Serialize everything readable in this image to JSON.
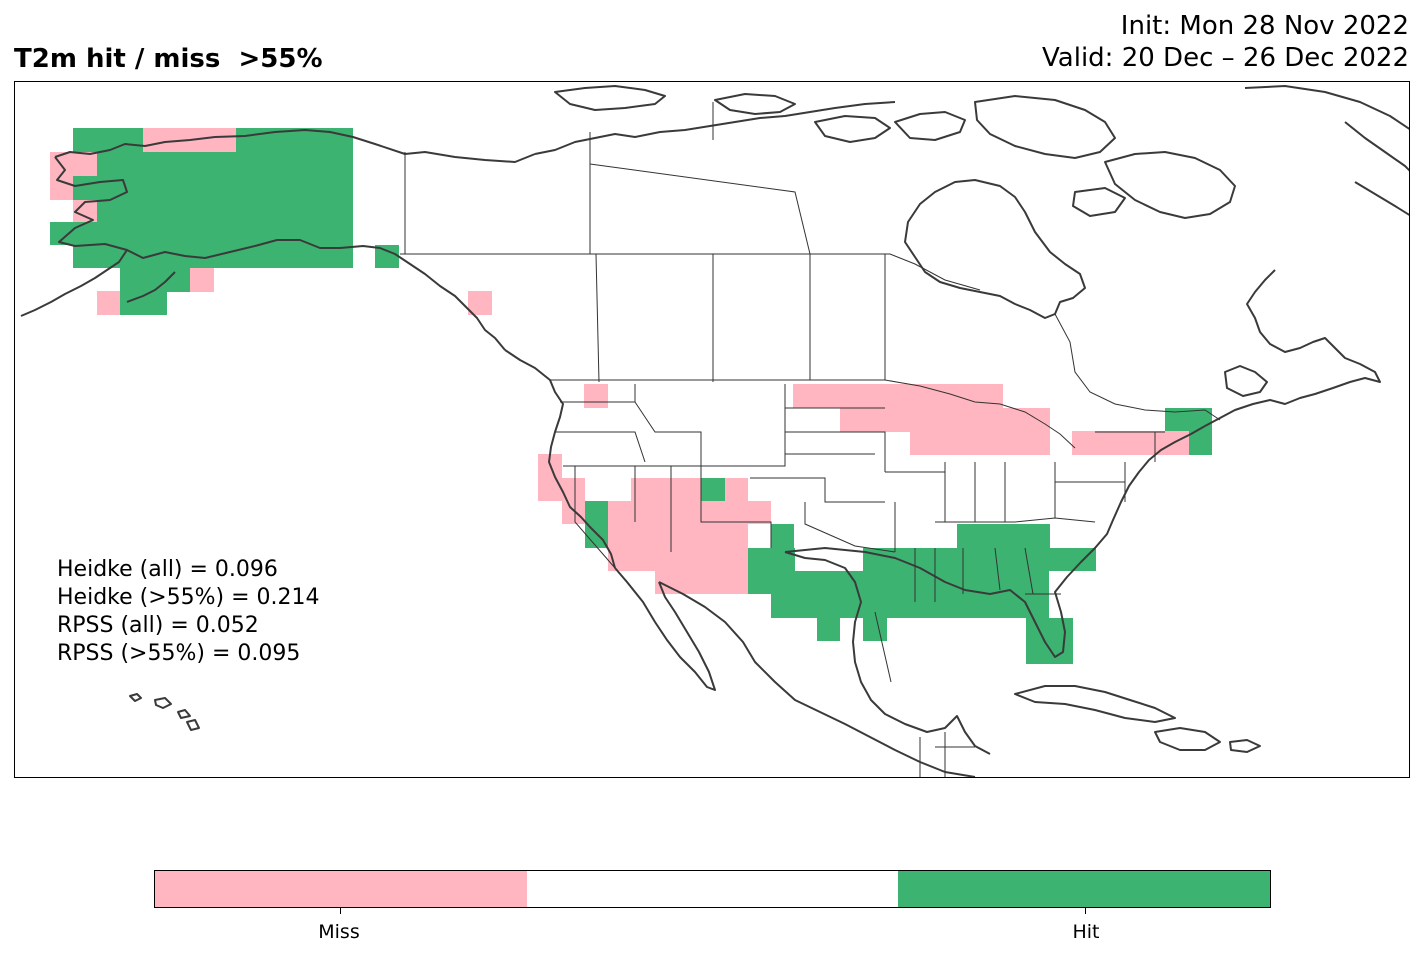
{
  "title": "T2m hit / miss  >55%",
  "init": "Init: Mon 28 Nov 2022",
  "valid": "Valid: 20 Dec – 26 Dec 2022",
  "stats": [
    "Heidke (all) = 0.096",
    "Heidke (>55%) = 0.214",
    "RPSS (all) = 0.052",
    "RPSS (>55%) = 0.095"
  ],
  "colors": {
    "miss": "#ffb6c1",
    "neutral": "#ffffff",
    "hit": "#3cb371"
  },
  "legend": {
    "miss_label": "Miss",
    "hit_label": "Hit"
  }
}
